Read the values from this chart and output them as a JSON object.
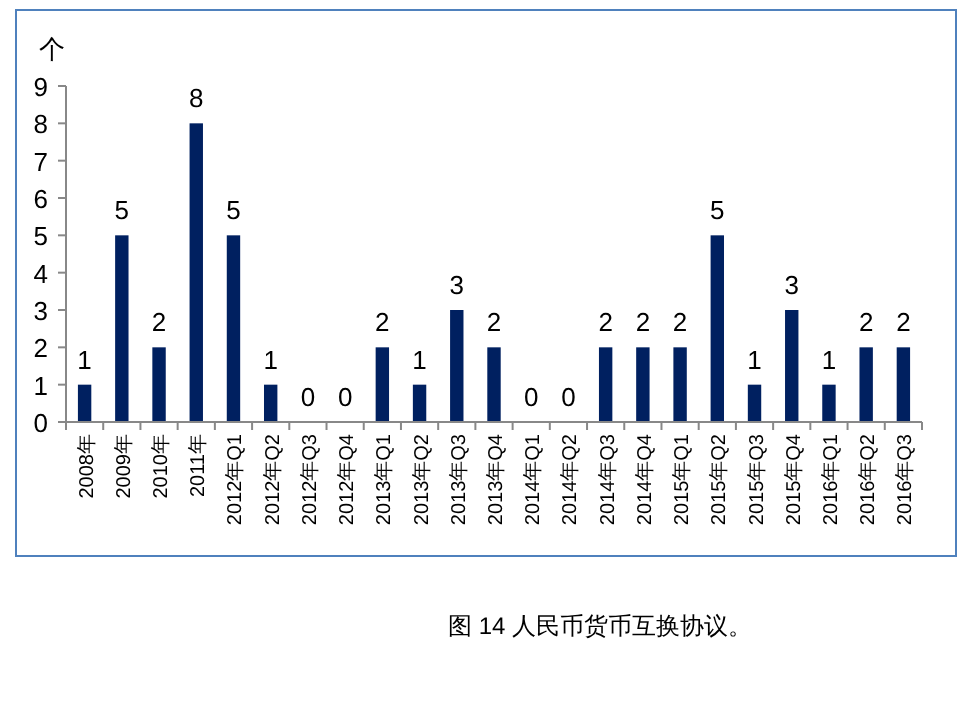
{
  "chart_data": {
    "type": "bar",
    "ylabel": "个",
    "categories": [
      "2008年",
      "2009年",
      "2010年",
      "2011年",
      "2012年Q1",
      "2012年Q2",
      "2012年Q3",
      "2012年Q4",
      "2013年Q1",
      "2013年Q2",
      "2013年Q3",
      "2013年Q4",
      "2014年Q1",
      "2014年Q2",
      "2014年Q3",
      "2014年Q4",
      "2015年Q1",
      "2015年Q2",
      "2015年Q3",
      "2015年Q4",
      "2016年Q1",
      "2016年Q2",
      "2016年Q3"
    ],
    "values": [
      1,
      5,
      2,
      8,
      5,
      1,
      0,
      0,
      2,
      1,
      3,
      2,
      0,
      0,
      2,
      2,
      2,
      5,
      1,
      3,
      1,
      2,
      2
    ],
    "color": "#002060",
    "ylim": [
      0,
      9
    ],
    "yticks": [
      0,
      1,
      2,
      3,
      4,
      5,
      6,
      7,
      8,
      9
    ],
    "data_labels": true,
    "grid": false,
    "annotations": [
      "图 14 人民币货币互换协议。"
    ]
  }
}
